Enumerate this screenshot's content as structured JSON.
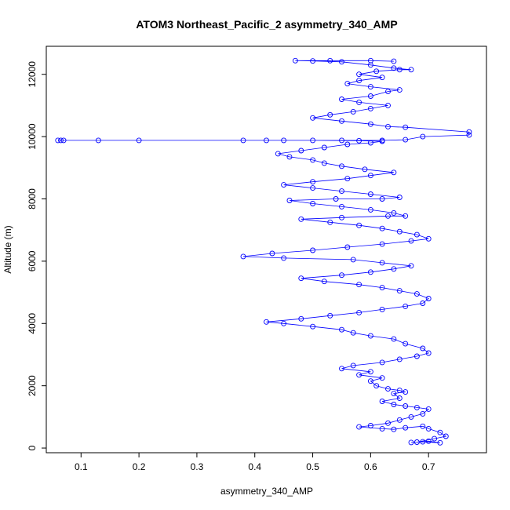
{
  "chart_data": {
    "type": "scatter",
    "title": "ATOM3 Northeast_Pacific_2 asymmetry_340_AMP",
    "xlabel": "asymmetry_340_AMP",
    "ylabel": "Altitude (m)",
    "xlim": [
      0.04,
      0.8
    ],
    "ylim": [
      -150,
      12900
    ],
    "x_ticks": [
      0.1,
      0.2,
      0.3,
      0.4,
      0.5,
      0.6,
      0.7
    ],
    "x_tick_labels": [
      "0.1",
      "0.2",
      "0.3",
      "0.4",
      "0.5",
      "0.6",
      "0.7"
    ],
    "y_ticks": [
      0,
      2000,
      4000,
      6000,
      8000,
      10000,
      12000
    ],
    "y_tick_labels": [
      "0",
      "2000",
      "4000",
      "6000",
      "8000",
      "10000",
      "12000"
    ],
    "series_color": "#0000ff",
    "marker": "open-circle",
    "connected": true,
    "grid": false,
    "series": [
      {
        "points": [
          [
            0.67,
            180
          ],
          [
            0.69,
            200
          ],
          [
            0.72,
            170
          ],
          [
            0.7,
            220
          ],
          [
            0.68,
            190
          ],
          [
            0.71,
            300
          ],
          [
            0.73,
            380
          ],
          [
            0.72,
            500
          ],
          [
            0.7,
            620
          ],
          [
            0.69,
            700
          ],
          [
            0.66,
            650
          ],
          [
            0.64,
            600
          ],
          [
            0.62,
            620
          ],
          [
            0.58,
            680
          ],
          [
            0.6,
            720
          ],
          [
            0.63,
            800
          ],
          [
            0.65,
            900
          ],
          [
            0.67,
            1000
          ],
          [
            0.69,
            1100
          ],
          [
            0.7,
            1250
          ],
          [
            0.68,
            1300
          ],
          [
            0.66,
            1350
          ],
          [
            0.64,
            1400
          ],
          [
            0.62,
            1500
          ],
          [
            0.65,
            1600
          ],
          [
            0.64,
            1750
          ],
          [
            0.66,
            1800
          ],
          [
            0.65,
            1850
          ],
          [
            0.63,
            1900
          ],
          [
            0.61,
            2000
          ],
          [
            0.6,
            2150
          ],
          [
            0.62,
            2250
          ],
          [
            0.58,
            2350
          ],
          [
            0.6,
            2450
          ],
          [
            0.55,
            2550
          ],
          [
            0.57,
            2650
          ],
          [
            0.62,
            2750
          ],
          [
            0.65,
            2850
          ],
          [
            0.68,
            2950
          ],
          [
            0.7,
            3050
          ],
          [
            0.69,
            3200
          ],
          [
            0.66,
            3350
          ],
          [
            0.64,
            3500
          ],
          [
            0.6,
            3600
          ],
          [
            0.57,
            3700
          ],
          [
            0.55,
            3800
          ],
          [
            0.5,
            3900
          ],
          [
            0.45,
            4000
          ],
          [
            0.42,
            4050
          ],
          [
            0.48,
            4150
          ],
          [
            0.53,
            4250
          ],
          [
            0.58,
            4350
          ],
          [
            0.62,
            4450
          ],
          [
            0.66,
            4550
          ],
          [
            0.69,
            4650
          ],
          [
            0.7,
            4800
          ],
          [
            0.68,
            4950
          ],
          [
            0.65,
            5050
          ],
          [
            0.62,
            5150
          ],
          [
            0.58,
            5250
          ],
          [
            0.52,
            5350
          ],
          [
            0.48,
            5450
          ],
          [
            0.55,
            5550
          ],
          [
            0.6,
            5650
          ],
          [
            0.64,
            5750
          ],
          [
            0.67,
            5850
          ],
          [
            0.62,
            5950
          ],
          [
            0.57,
            6050
          ],
          [
            0.45,
            6100
          ],
          [
            0.38,
            6150
          ],
          [
            0.43,
            6250
          ],
          [
            0.5,
            6350
          ],
          [
            0.56,
            6450
          ],
          [
            0.62,
            6550
          ],
          [
            0.67,
            6650
          ],
          [
            0.7,
            6720
          ],
          [
            0.68,
            6850
          ],
          [
            0.65,
            6950
          ],
          [
            0.62,
            7050
          ],
          [
            0.58,
            7150
          ],
          [
            0.53,
            7250
          ],
          [
            0.48,
            7350
          ],
          [
            0.55,
            7400
          ],
          [
            0.63,
            7450
          ],
          [
            0.66,
            7450
          ],
          [
            0.64,
            7550
          ],
          [
            0.6,
            7650
          ],
          [
            0.55,
            7750
          ],
          [
            0.5,
            7850
          ],
          [
            0.46,
            7950
          ],
          [
            0.54,
            8000
          ],
          [
            0.62,
            8000
          ],
          [
            0.65,
            8050
          ],
          [
            0.6,
            8150
          ],
          [
            0.55,
            8250
          ],
          [
            0.5,
            8350
          ],
          [
            0.45,
            8450
          ],
          [
            0.5,
            8550
          ],
          [
            0.56,
            8650
          ],
          [
            0.6,
            8750
          ],
          [
            0.64,
            8850
          ],
          [
            0.59,
            8950
          ],
          [
            0.55,
            9050
          ],
          [
            0.52,
            9150
          ],
          [
            0.5,
            9250
          ],
          [
            0.46,
            9350
          ],
          [
            0.44,
            9450
          ],
          [
            0.48,
            9550
          ],
          [
            0.52,
            9650
          ],
          [
            0.56,
            9750
          ],
          [
            0.6,
            9800
          ],
          [
            0.62,
            9850
          ],
          [
            0.58,
            9870
          ],
          [
            0.5,
            9880
          ],
          [
            0.42,
            9880
          ],
          [
            0.38,
            9880
          ],
          [
            0.13,
            9880
          ],
          [
            0.07,
            9880
          ],
          [
            0.06,
            9880
          ],
          [
            0.065,
            9880
          ],
          [
            0.2,
            9880
          ],
          [
            0.45,
            9880
          ],
          [
            0.55,
            9880
          ],
          [
            0.62,
            9880
          ],
          [
            0.66,
            9900
          ],
          [
            0.69,
            10000
          ],
          [
            0.77,
            10050
          ],
          [
            0.77,
            10150
          ],
          [
            0.66,
            10300
          ],
          [
            0.63,
            10320
          ],
          [
            0.6,
            10400
          ],
          [
            0.55,
            10500
          ],
          [
            0.5,
            10600
          ],
          [
            0.53,
            10700
          ],
          [
            0.57,
            10800
          ],
          [
            0.6,
            10900
          ],
          [
            0.63,
            11000
          ],
          [
            0.58,
            11100
          ],
          [
            0.55,
            11200
          ],
          [
            0.6,
            11300
          ],
          [
            0.63,
            11450
          ],
          [
            0.65,
            11500
          ],
          [
            0.6,
            11600
          ],
          [
            0.56,
            11700
          ],
          [
            0.58,
            11800
          ],
          [
            0.62,
            11900
          ],
          [
            0.58,
            12000
          ],
          [
            0.61,
            12100
          ],
          [
            0.65,
            12150
          ],
          [
            0.67,
            12150
          ],
          [
            0.64,
            12200
          ],
          [
            0.6,
            12300
          ],
          [
            0.55,
            12400
          ],
          [
            0.5,
            12430
          ],
          [
            0.47,
            12440
          ],
          [
            0.53,
            12440
          ],
          [
            0.6,
            12440
          ],
          [
            0.64,
            12420
          ]
        ]
      }
    ]
  }
}
